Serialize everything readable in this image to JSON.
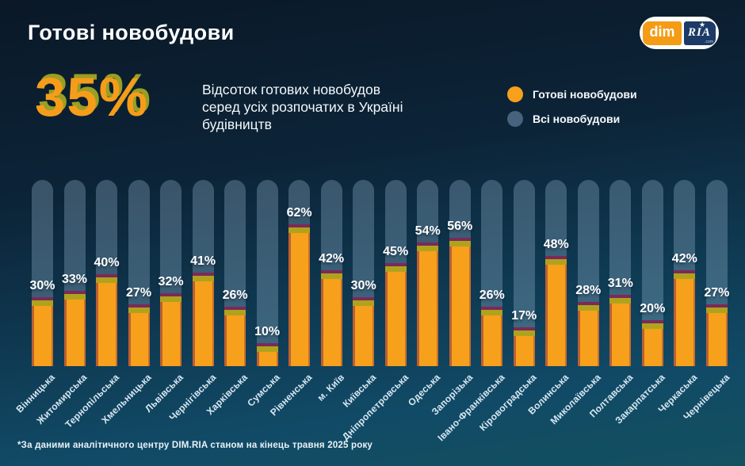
{
  "header": {
    "title": "Готові новобудови"
  },
  "logo": {
    "dim": "dim",
    "ria": "RIA",
    "com": ".com"
  },
  "stat": {
    "value": "35%",
    "description_lines": [
      "Відсоток готових новобудов",
      "серед усіх розпочатих в Україні",
      "будівництв"
    ]
  },
  "legend": {
    "items": [
      {
        "label": "Готові новобудови",
        "color": "#F7A01B"
      },
      {
        "label": "Всі новобудови",
        "color": "#46627C"
      }
    ]
  },
  "footnote": "*За даними аналітичного центру DIM.RIA станом на кінець травня 2025 року",
  "colors": {
    "background_top": "#0A1827",
    "background_bottom": "#13505F",
    "bar": "#F7A01B",
    "bar_cap_olive": "#AFA31E",
    "bar_cap_magenta": "#7C2959",
    "track": "rgba(151,184,208,0.33)",
    "track_solid": "#46627C",
    "stat_orange": "#F59D1A",
    "stat_ghost_olive": "#A9AD24",
    "brand_orange": "#F49C15",
    "brand_navy": "#1C3A66"
  },
  "chart_data": {
    "type": "bar",
    "title": "Готові новобудови",
    "subtitle": "Відсоток готових новобудов серед усіх розпочатих в Україні будівництв",
    "highlight_value": "35%",
    "unit": "%",
    "ylim": [
      0,
      100
    ],
    "grid": false,
    "legend_position": "top-right",
    "value_labels": true,
    "category_label_rotation": -45,
    "categories": [
      "Вінницька",
      "Житомирська",
      "Тернопільська",
      "Хмельницька",
      "Львівська",
      "Чернігівська",
      "Харківська",
      "Сумська",
      "Рівненська",
      "м. Київ",
      "Київська",
      "Дніпропетровська",
      "Одеська",
      "Запорізька",
      "Івано-Франківська",
      "Кіровоградська",
      "Волинська",
      "Миколаївська",
      "Полтавська",
      "Закарпатська",
      "Черкаська",
      "Чернівецька"
    ],
    "series": [
      {
        "name": "Готові новобудови",
        "color": "#F7A01B",
        "values": [
          30,
          33,
          40,
          27,
          32,
          41,
          26,
          10,
          62,
          42,
          30,
          45,
          54,
          56,
          26,
          17,
          48,
          28,
          31,
          20,
          42,
          27
        ]
      },
      {
        "name": "Всі новобудови",
        "color": "#46627C",
        "role": "background-track",
        "values": [
          100,
          100,
          100,
          100,
          100,
          100,
          100,
          100,
          100,
          100,
          100,
          100,
          100,
          100,
          100,
          100,
          100,
          100,
          100,
          100,
          100,
          100
        ]
      }
    ],
    "source_note": "*За даними аналітичного центру DIM.RIA станом на кінець травня 2025 року"
  }
}
